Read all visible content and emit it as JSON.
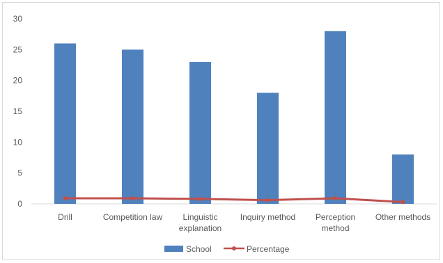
{
  "chart_data": {
    "type": "bar",
    "categories": [
      [
        "Drill"
      ],
      [
        "Competition law"
      ],
      [
        "Linguistic",
        "explanation"
      ],
      [
        "Inquiry method"
      ],
      [
        "Perception",
        "method"
      ],
      [
        "Other methods"
      ]
    ],
    "series": [
      {
        "name": "School",
        "kind": "bar",
        "color": "#4f81bd",
        "values": [
          26,
          25,
          23,
          18,
          28,
          8
        ]
      },
      {
        "name": "Percentage",
        "kind": "line",
        "color": "#c0504d",
        "values": [
          0.9,
          0.9,
          0.8,
          0.6,
          0.9,
          0.3
        ]
      }
    ],
    "y_ticks": [
      "0",
      "5",
      "10",
      "15",
      "20",
      "25",
      "30"
    ],
    "ylim": [
      0,
      30
    ],
    "grid": false,
    "legend_position": "bottom",
    "title": "",
    "xlabel": "",
    "ylabel": ""
  }
}
